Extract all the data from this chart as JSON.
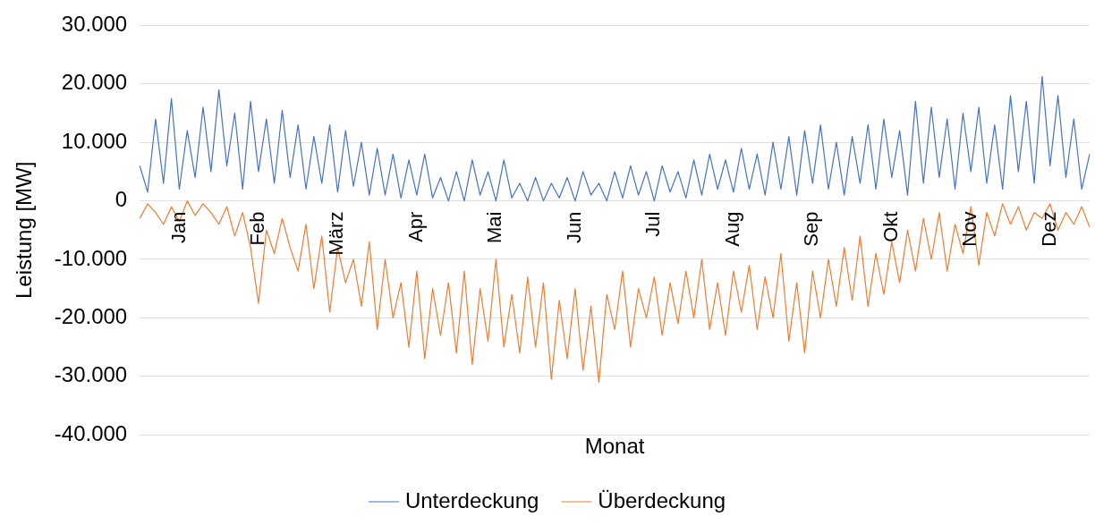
{
  "chart_data": {
    "type": "line",
    "xlabel": "Monat",
    "ylabel": "Leistung [MW]",
    "categories": [
      null,
      null,
      null,
      null,
      null,
      "Jan",
      null,
      null,
      null,
      null,
      null,
      null,
      null,
      null,
      null,
      "Feb",
      null,
      null,
      null,
      null,
      null,
      null,
      null,
      null,
      null,
      "März",
      null,
      null,
      null,
      null,
      null,
      null,
      null,
      null,
      null,
      "Apr",
      null,
      null,
      null,
      null,
      null,
      null,
      null,
      null,
      null,
      "Mai",
      null,
      null,
      null,
      null,
      null,
      null,
      null,
      null,
      null,
      "Jun",
      null,
      null,
      null,
      null,
      null,
      null,
      null,
      null,
      null,
      "Jul",
      null,
      null,
      null,
      null,
      null,
      null,
      null,
      null,
      null,
      "Aug",
      null,
      null,
      null,
      null,
      null,
      null,
      null,
      null,
      null,
      "Sep",
      null,
      null,
      null,
      null,
      null,
      null,
      null,
      null,
      null,
      "Okt",
      null,
      null,
      null,
      null,
      null,
      null,
      null,
      null,
      null,
      "Nov",
      null,
      null,
      null,
      null,
      null,
      null,
      null,
      null,
      null,
      "Dez",
      null,
      null,
      null,
      null,
      null
    ],
    "series": [
      {
        "name": "Unterdeckung",
        "color": "#4472c4",
        "values": [
          6000,
          1500,
          14000,
          3000,
          17500,
          2000,
          12000,
          4000,
          16000,
          5000,
          19000,
          6000,
          15000,
          2000,
          17000,
          5000,
          14000,
          3000,
          15500,
          4000,
          13000,
          2000,
          11000,
          3000,
          13000,
          1500,
          12000,
          2500,
          10000,
          1000,
          9000,
          1000,
          8000,
          500,
          7000,
          1000,
          8000,
          500,
          4000,
          0,
          5000,
          0,
          7000,
          1000,
          5000,
          0,
          7000,
          500,
          3000,
          0,
          4000,
          0,
          3000,
          500,
          4000,
          0,
          5000,
          1000,
          3000,
          0,
          5000,
          500,
          6000,
          1000,
          5000,
          0,
          6000,
          1500,
          5000,
          500,
          7000,
          1000,
          8000,
          2000,
          7000,
          1500,
          9000,
          2000,
          8000,
          1000,
          10000,
          2000,
          11000,
          1000,
          12000,
          3000,
          13000,
          2000,
          10000,
          1000,
          11000,
          3000,
          13000,
          2000,
          14000,
          4000,
          12000,
          1000,
          17000,
          3000,
          16000,
          4000,
          14000,
          2000,
          15000,
          5000,
          16000,
          3000,
          13000,
          2000,
          18000,
          5000,
          17000,
          3000,
          21300,
          6000,
          18000,
          4000,
          14000,
          2000,
          8000
        ]
      },
      {
        "name": "Überdeckung",
        "color": "#ed7d31",
        "values": [
          -3000,
          -500,
          -2000,
          -4000,
          -1000,
          -3500,
          0,
          -2500,
          -500,
          -2000,
          -4000,
          -1000,
          -6000,
          -2000,
          -8000,
          -17500,
          -5000,
          -9000,
          -3000,
          -8000,
          -12000,
          -4000,
          -15000,
          -6000,
          -19000,
          -8000,
          -14000,
          -10000,
          -18000,
          -7000,
          -22000,
          -10000,
          -20000,
          -14000,
          -25000,
          -12000,
          -27000,
          -15000,
          -23000,
          -14000,
          -26000,
          -12000,
          -28000,
          -15000,
          -24000,
          -10000,
          -25000,
          -16000,
          -26000,
          -13000,
          -25000,
          -14000,
          -30500,
          -17000,
          -27000,
          -15000,
          -29000,
          -18000,
          -31000,
          -16000,
          -22000,
          -12000,
          -25000,
          -15000,
          -20000,
          -13000,
          -23000,
          -14000,
          -21000,
          -12000,
          -20000,
          -10000,
          -22000,
          -14000,
          -23000,
          -12000,
          -19000,
          -11000,
          -22000,
          -13000,
          -20000,
          -9000,
          -24000,
          -14000,
          -26000,
          -12000,
          -20000,
          -10000,
          -18000,
          -8000,
          -17000,
          -6000,
          -18000,
          -9000,
          -16000,
          -7000,
          -14000,
          -5000,
          -12000,
          -3000,
          -10000,
          -2000,
          -12000,
          -4000,
          -9000,
          -1000,
          -11000,
          -2000,
          -6000,
          -500,
          -4000,
          -1000,
          -5000,
          -2000,
          -3000,
          -500,
          -5000,
          -2000,
          -4000,
          -1000,
          -4500
        ]
      }
    ],
    "ylim": [
      -40000,
      30000
    ],
    "yticks": [
      {
        "value": 30000,
        "label": "30.000"
      },
      {
        "value": 20000,
        "label": "20.000"
      },
      {
        "value": 10000,
        "label": "10.000"
      },
      0,
      {
        "value": -10000,
        "label": "-10.000"
      },
      {
        "value": -20000,
        "label": "-20.000"
      },
      {
        "value": -30000,
        "label": "-30.000"
      },
      {
        "value": -40000,
        "label": "-40.000"
      }
    ],
    "grid": "y",
    "legend": "bottom",
    "marker": "none",
    "line_style": "solid"
  }
}
